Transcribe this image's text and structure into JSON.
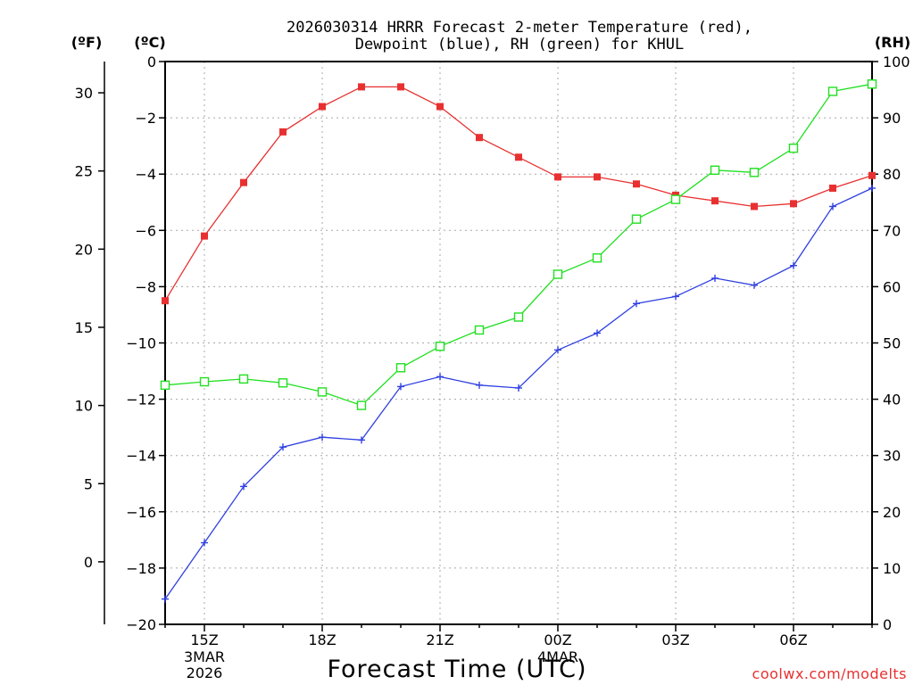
{
  "chart_data": {
    "type": "line",
    "title_line1": "2026030314 HRRR Forecast 2-meter Temperature (red),",
    "title_line2": "Dewpoint (blue), RH (green) for KHUL",
    "xlabel": "Forecast Time (UTC)",
    "left_unit_f": "(ºF)",
    "left_unit_c": "(ºC)",
    "right_unit": "(RH)",
    "credit": "coolwx.com/modelts",
    "x_tick_labels": [
      "15Z",
      "18Z",
      "21Z",
      "00Z",
      "03Z",
      "06Z"
    ],
    "x_tick_hours": [
      1,
      4,
      7,
      10,
      13,
      16
    ],
    "date_labels": [
      {
        "hour": 1,
        "line1": "3MAR",
        "line2": "2026"
      },
      {
        "hour": 10,
        "line1": "4MAR",
        "line2": ""
      }
    ],
    "x_hours": [
      0,
      1,
      2,
      3,
      4,
      5,
      6,
      7,
      8,
      9,
      10,
      11,
      12,
      13,
      14,
      15,
      16,
      17,
      18
    ],
    "celsius_axis": {
      "min": -20,
      "max": 0,
      "ticks": [
        0,
        -2,
        -4,
        -6,
        -8,
        -10,
        -12,
        -14,
        -16,
        -18,
        -20
      ]
    },
    "fahrenheit_axis": {
      "ticks": [
        30,
        25,
        20,
        15,
        10,
        5,
        0
      ]
    },
    "rh_axis": {
      "min": 0,
      "max": 100,
      "ticks": [
        100,
        90,
        80,
        70,
        60,
        50,
        40,
        30,
        20,
        10,
        0
      ]
    },
    "series": [
      {
        "name": "Temperature",
        "units": "C",
        "color": "#e83030",
        "marker": "filled-square",
        "values": [
          -8.5,
          -6.2,
          -4.3,
          -2.5,
          -1.6,
          -0.9,
          -0.9,
          -1.6,
          -2.7,
          -3.4,
          -4.1,
          -4.1,
          -4.35,
          -4.75,
          -4.95,
          -5.15,
          -5.05,
          -4.5,
          -4.05
        ]
      },
      {
        "name": "Dewpoint",
        "units": "C",
        "color": "#3040e0",
        "marker": "plus",
        "values": [
          -19.1,
          -17.1,
          -15.1,
          -13.7,
          -13.35,
          -13.45,
          -11.55,
          -11.2,
          -11.5,
          -11.6,
          -10.25,
          -9.65,
          -8.6,
          -8.35,
          -7.7,
          -7.95,
          -7.25,
          -5.15,
          -4.5
        ]
      },
      {
        "name": "Relative Humidity",
        "units": "%",
        "color": "#20e020",
        "marker": "open-square",
        "values": [
          42.5,
          43.1,
          43.6,
          42.9,
          41.3,
          38.9,
          45.6,
          49.4,
          52.3,
          54.6,
          62.2,
          65.1,
          72.0,
          75.5,
          80.7,
          80.3,
          84.6,
          94.7,
          96.0
        ]
      }
    ]
  }
}
